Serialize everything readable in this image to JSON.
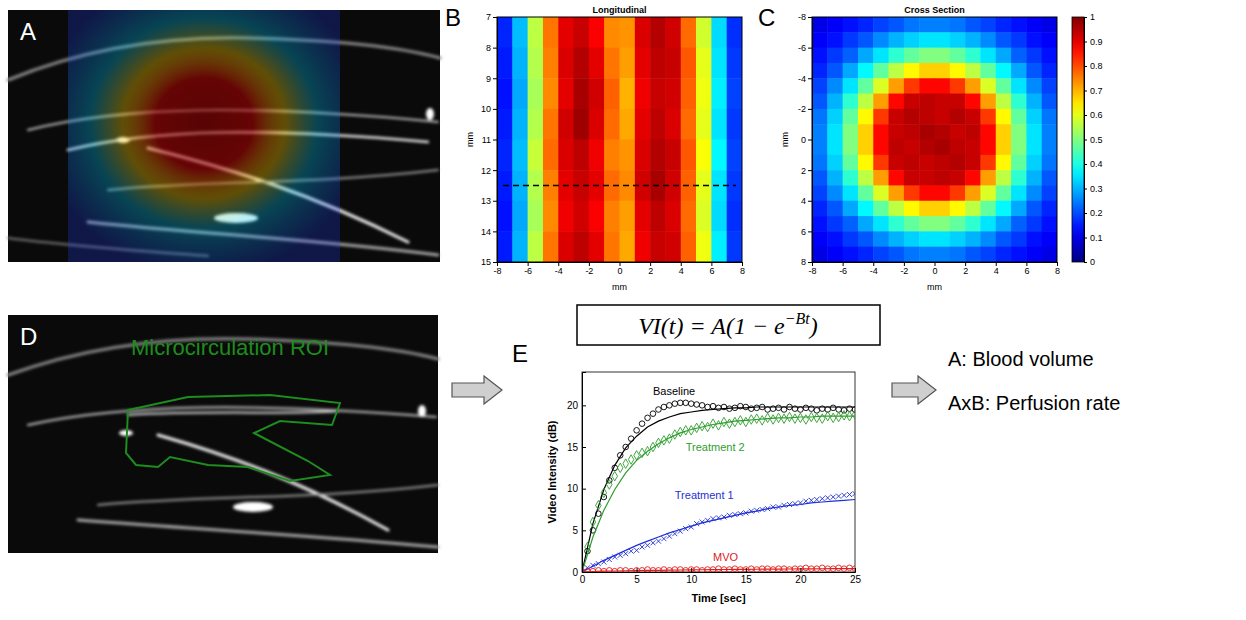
{
  "images": [
    {
      "label": "A"
    },
    {
      "label": "D",
      "roi_label": "Microcirculation ROI"
    }
  ],
  "chart_data": [
    {
      "type": "heatmap",
      "label": "B",
      "title": "Longitudinal",
      "xlabel": "mm",
      "ylabel": "mm",
      "xlim": [
        -8,
        8
      ],
      "ylim": [
        7,
        15
      ],
      "xticks": [
        -8,
        -6,
        -4,
        -2,
        0,
        2,
        4,
        6,
        8
      ],
      "yticks": [
        7,
        8,
        9,
        10,
        11,
        12,
        13,
        14,
        15
      ],
      "section_line": 12.5,
      "z": [
        [
          0.16,
          0.31,
          0.56,
          0.76,
          0.9,
          0.93,
          0.88,
          0.74,
          0.73,
          0.91,
          0.95,
          0.92,
          0.77,
          0.58,
          0.34,
          0.17
        ],
        [
          0.15,
          0.3,
          0.55,
          0.75,
          0.91,
          0.95,
          0.9,
          0.76,
          0.72,
          0.9,
          0.94,
          0.93,
          0.79,
          0.6,
          0.35,
          0.18
        ],
        [
          0.14,
          0.29,
          0.54,
          0.74,
          0.9,
          0.96,
          0.92,
          0.78,
          0.7,
          0.89,
          0.93,
          0.92,
          0.78,
          0.61,
          0.36,
          0.19
        ],
        [
          0.15,
          0.3,
          0.55,
          0.76,
          0.92,
          0.97,
          0.91,
          0.77,
          0.71,
          0.9,
          0.94,
          0.91,
          0.77,
          0.6,
          0.35,
          0.18
        ],
        [
          0.16,
          0.31,
          0.57,
          0.77,
          0.91,
          0.94,
          0.89,
          0.75,
          0.73,
          0.91,
          0.95,
          0.93,
          0.79,
          0.62,
          0.37,
          0.19
        ],
        [
          0.15,
          0.3,
          0.55,
          0.75,
          0.9,
          0.93,
          0.9,
          0.77,
          0.74,
          0.92,
          0.96,
          0.92,
          0.78,
          0.6,
          0.35,
          0.18
        ],
        [
          0.14,
          0.29,
          0.54,
          0.74,
          0.89,
          0.92,
          0.88,
          0.75,
          0.72,
          0.9,
          0.94,
          0.91,
          0.77,
          0.59,
          0.34,
          0.17
        ],
        [
          0.15,
          0.3,
          0.56,
          0.76,
          0.91,
          0.94,
          0.9,
          0.76,
          0.71,
          0.89,
          0.93,
          0.92,
          0.78,
          0.61,
          0.36,
          0.18
        ]
      ]
    },
    {
      "type": "heatmap",
      "label": "C",
      "title": "Cross Section",
      "xlabel": "mm",
      "ylabel": "mm",
      "xlim": [
        -8,
        8
      ],
      "ylim": [
        -8,
        8
      ],
      "xticks": [
        -8,
        -6,
        -4,
        -2,
        0,
        2,
        4,
        6,
        8
      ],
      "yticks": [
        -8,
        -6,
        -4,
        -2,
        0,
        2,
        4,
        6,
        8
      ],
      "colorbar": {
        "lim": [
          0,
          1
        ],
        "ticks": [
          0,
          0.1,
          0.2,
          0.3,
          0.4,
          0.5,
          0.6,
          0.7,
          0.8,
          0.9,
          1
        ]
      },
      "z": [
        [
          0.1,
          0.12,
          0.14,
          0.16,
          0.19,
          0.21,
          0.24,
          0.25,
          0.25,
          0.24,
          0.21,
          0.19,
          0.16,
          0.14,
          0.12,
          0.1
        ],
        [
          0.12,
          0.14,
          0.18,
          0.21,
          0.26,
          0.3,
          0.33,
          0.35,
          0.35,
          0.33,
          0.3,
          0.26,
          0.21,
          0.18,
          0.14,
          0.12
        ],
        [
          0.14,
          0.18,
          0.22,
          0.29,
          0.35,
          0.42,
          0.47,
          0.5,
          0.5,
          0.47,
          0.42,
          0.35,
          0.29,
          0.22,
          0.18,
          0.14
        ],
        [
          0.16,
          0.21,
          0.29,
          0.37,
          0.47,
          0.56,
          0.63,
          0.67,
          0.67,
          0.63,
          0.56,
          0.47,
          0.37,
          0.29,
          0.21,
          0.16
        ],
        [
          0.19,
          0.26,
          0.35,
          0.47,
          0.59,
          0.72,
          0.82,
          0.87,
          0.87,
          0.82,
          0.72,
          0.59,
          0.47,
          0.35,
          0.26,
          0.19
        ],
        [
          0.21,
          0.3,
          0.42,
          0.56,
          0.72,
          0.87,
          0.93,
          0.94,
          0.93,
          0.93,
          0.87,
          0.72,
          0.56,
          0.42,
          0.3,
          0.21
        ],
        [
          0.24,
          0.33,
          0.47,
          0.63,
          0.82,
          0.93,
          0.95,
          0.94,
          0.93,
          0.95,
          0.93,
          0.82,
          0.63,
          0.47,
          0.33,
          0.24
        ],
        [
          0.25,
          0.35,
          0.5,
          0.67,
          0.87,
          0.93,
          0.94,
          0.96,
          0.95,
          0.93,
          0.94,
          0.87,
          0.67,
          0.5,
          0.35,
          0.25
        ],
        [
          0.25,
          0.35,
          0.5,
          0.67,
          0.87,
          0.94,
          0.93,
          0.95,
          0.96,
          0.94,
          0.93,
          0.87,
          0.67,
          0.5,
          0.35,
          0.25
        ],
        [
          0.24,
          0.33,
          0.47,
          0.63,
          0.82,
          0.93,
          0.94,
          0.93,
          0.94,
          0.95,
          0.93,
          0.82,
          0.63,
          0.47,
          0.33,
          0.24
        ],
        [
          0.21,
          0.3,
          0.42,
          0.56,
          0.72,
          0.87,
          0.93,
          0.93,
          0.94,
          0.93,
          0.87,
          0.72,
          0.56,
          0.42,
          0.3,
          0.21
        ],
        [
          0.19,
          0.26,
          0.35,
          0.47,
          0.59,
          0.72,
          0.82,
          0.87,
          0.87,
          0.82,
          0.72,
          0.59,
          0.47,
          0.35,
          0.26,
          0.19
        ],
        [
          0.16,
          0.21,
          0.29,
          0.37,
          0.47,
          0.56,
          0.63,
          0.67,
          0.67,
          0.63,
          0.56,
          0.47,
          0.37,
          0.29,
          0.21,
          0.16
        ],
        [
          0.14,
          0.18,
          0.22,
          0.29,
          0.35,
          0.42,
          0.47,
          0.5,
          0.5,
          0.47,
          0.42,
          0.35,
          0.29,
          0.22,
          0.18,
          0.14
        ],
        [
          0.12,
          0.14,
          0.18,
          0.21,
          0.26,
          0.3,
          0.33,
          0.35,
          0.35,
          0.33,
          0.3,
          0.26,
          0.21,
          0.18,
          0.14,
          0.12
        ],
        [
          0.1,
          0.12,
          0.14,
          0.16,
          0.19,
          0.21,
          0.24,
          0.25,
          0.25,
          0.24,
          0.21,
          0.19,
          0.16,
          0.14,
          0.12,
          0.1
        ]
      ]
    },
    {
      "type": "scatter",
      "label": "E",
      "equation": [
        "VI(t) = A(1 − e",
        "−Bt",
        ")"
      ],
      "xlabel": "Time [sec]",
      "ylabel": "Video Intensity (dB)",
      "xlim": [
        0,
        25
      ],
      "ylim": [
        0,
        24
      ],
      "xticks": [
        0,
        5,
        10,
        15,
        20,
        25
      ],
      "yticks": [
        0,
        5,
        10,
        15,
        20
      ],
      "x": [
        0,
        0.5,
        1,
        1.5,
        2,
        2.5,
        3,
        3.5,
        4,
        4.5,
        5,
        5.5,
        6,
        6.5,
        7,
        7.5,
        8,
        8.5,
        9,
        9.5,
        10,
        10.5,
        11,
        11.5,
        12,
        12.5,
        13,
        13.5,
        14,
        14.5,
        15,
        15.5,
        16,
        16.5,
        17,
        17.5,
        18,
        18.5,
        19,
        19.5,
        20,
        20.5,
        21,
        21.5,
        22,
        22.5,
        23,
        23.5,
        24,
        24.5,
        25
      ],
      "series": [
        {
          "name": "Baseline",
          "type": "scatter",
          "marker": "circle",
          "color": "#000000",
          "label_position": [
            6.5,
            21.3
          ],
          "values": [
            0,
            2.5,
            5,
            7,
            9,
            11,
            12.5,
            14,
            15,
            16,
            17,
            17.8,
            18.5,
            19,
            19.5,
            19.8,
            20,
            20.2,
            20.3,
            20.3,
            20.2,
            20.1,
            20,
            19.8,
            19.9,
            19.7,
            19.8,
            19.6,
            19.7,
            19.9,
            19.8,
            19.6,
            19.7,
            19.8,
            19.5,
            19.6,
            19.7,
            19.5,
            19.8,
            19.6,
            19.5,
            19.7,
            19.6,
            19.4,
            19.6,
            19.5,
            19.7,
            19.5,
            19.4,
            19.6,
            19.5
          ]
        },
        {
          "type": "line",
          "line_style": "solid",
          "color": "#000000",
          "x": [
            0,
            1,
            2,
            3,
            4,
            5,
            6,
            7,
            8,
            9,
            10,
            11,
            12,
            13,
            14,
            15,
            16,
            17,
            18,
            19,
            20,
            21,
            22,
            23,
            24,
            25
          ],
          "values": [
            0,
            5.8,
            9.9,
            12.8,
            14.9,
            16.3,
            17.4,
            18.1,
            18.6,
            19,
            19.2,
            19.4,
            19.5,
            19.6,
            19.7,
            19.7,
            19.8,
            19.8,
            19.8,
            19.8,
            19.8,
            19.8,
            19.8,
            19.8,
            19.8,
            19.8
          ]
        },
        {
          "name": "Treatment 2",
          "type": "scatter",
          "marker": "diamond",
          "color": "#2e9e2e",
          "label_position": [
            9.5,
            14.5
          ],
          "values": [
            0,
            3,
            6,
            8,
            9.5,
            10.5,
            11.5,
            12.5,
            13,
            13.5,
            14,
            14.3,
            14.5,
            15,
            15.5,
            15.8,
            16,
            16.5,
            16.8,
            17,
            17,
            17.3,
            17.5,
            17.4,
            17.8,
            17.6,
            18,
            17.8,
            18,
            18.2,
            18,
            18.3,
            18.4,
            18.2,
            18.5,
            18.3,
            18.5,
            18.4,
            18.6,
            18.4,
            18.5,
            18.3,
            18.6,
            18.5,
            18.4,
            18.7,
            18.5,
            18.6,
            18.8,
            18.7,
            18.9
          ]
        },
        {
          "type": "line",
          "line_style": "solid",
          "color": "#2e9e2e",
          "x": [
            0,
            1,
            2,
            3,
            4,
            5,
            6,
            7,
            8,
            9,
            10,
            11,
            12,
            13,
            14,
            15,
            16,
            17,
            18,
            19,
            20,
            21,
            22,
            23,
            24,
            25
          ],
          "values": [
            0,
            4.2,
            7.4,
            9.9,
            11.9,
            13.4,
            14.5,
            15.4,
            16.1,
            16.7,
            17.1,
            17.4,
            17.7,
            17.9,
            18.1,
            18.2,
            18.3,
            18.4,
            18.5,
            18.5,
            18.6,
            18.6,
            18.7,
            18.7,
            18.7,
            18.7
          ]
        },
        {
          "name": "Treatment 1",
          "type": "scatter",
          "marker": "x",
          "color": "#1f2fd6",
          "label_position": [
            8.5,
            8.8
          ],
          "values": [
            0,
            0.5,
            0.8,
            1,
            1.2,
            1.5,
            1.8,
            2,
            2.2,
            2.5,
            2.6,
            3,
            3.2,
            3.5,
            3.7,
            4,
            4.3,
            4.6,
            4.9,
            5.2,
            5.4,
            5.8,
            6,
            6.2,
            6.4,
            6.5,
            6.6,
            6.8,
            6.9,
            7,
            7.1,
            7.3,
            7.4,
            7.5,
            7.6,
            7.8,
            7.8,
            8,
            8.1,
            8.2,
            8.3,
            8.5,
            8.6,
            8.7,
            8.8,
            8.9,
            9,
            9.1,
            9.2,
            9.3,
            9.4
          ]
        },
        {
          "type": "line",
          "line_style": "solid",
          "color": "#1f2fd6",
          "x": [
            0,
            1,
            2,
            3,
            4,
            5,
            6,
            7,
            8,
            9,
            10,
            11,
            12,
            13,
            14,
            15,
            16,
            17,
            18,
            19,
            20,
            21,
            22,
            23,
            24,
            25
          ],
          "values": [
            0,
            0.7,
            1.4,
            2,
            2.6,
            3.2,
            3.7,
            4.2,
            4.7,
            5.1,
            5.5,
            5.9,
            6.2,
            6.5,
            6.8,
            7.1,
            7.3,
            7.6,
            7.8,
            8,
            8.1,
            8.3,
            8.4,
            8.5,
            8.6,
            8.7
          ]
        },
        {
          "name": "MVO",
          "type": "scatter",
          "marker": "circle",
          "color": "#e0201e",
          "label_position": [
            12,
            1.3
          ],
          "values": [
            0,
            0.1,
            0.1,
            0.2,
            0.1,
            0.2,
            0.1,
            0.2,
            0.2,
            0.1,
            0.2,
            0.2,
            0.3,
            0.2,
            0.2,
            0.3,
            0.2,
            0.3,
            0.3,
            0.2,
            0.3,
            0.3,
            0.2,
            0.3,
            0.3,
            0.4,
            0.3,
            0.3,
            0.4,
            0.3,
            0.3,
            0.4,
            0.3,
            0.4,
            0.4,
            0.3,
            0.4,
            0.4,
            0.3,
            0.4,
            0.4,
            0.5,
            0.4,
            0.4,
            0.5,
            0.4,
            0.4,
            0.5,
            0.4,
            0.5,
            0.4
          ]
        },
        {
          "type": "line",
          "line_style": "solid",
          "color": "#e0201e",
          "x": [
            0,
            1,
            2,
            3,
            4,
            5,
            6,
            7,
            8,
            9,
            10,
            11,
            12,
            13,
            14,
            15,
            16,
            17,
            18,
            19,
            20,
            21,
            22,
            23,
            24,
            25
          ],
          "values": [
            0,
            0.05,
            0.1,
            0.12,
            0.15,
            0.17,
            0.19,
            0.2,
            0.22,
            0.24,
            0.25,
            0.27,
            0.28,
            0.3,
            0.31,
            0.32,
            0.33,
            0.34,
            0.35,
            0.36,
            0.37,
            0.38,
            0.39,
            0.4,
            0.4,
            0.41
          ]
        }
      ]
    }
  ],
  "outputs": [
    "A: Blood volume",
    "AxB: Perfusion rate"
  ]
}
